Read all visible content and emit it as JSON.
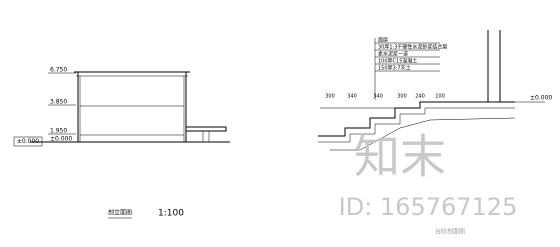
{
  "left": {
    "levels": [
      "6.750",
      "3.850",
      "1.950",
      "±0.000"
    ],
    "ground_label": "±0.000",
    "caption": "剖立面图",
    "scale": "1:100"
  },
  "right": {
    "dims": [
      "300",
      "340",
      "340",
      "300",
      "240",
      "100"
    ],
    "layers": [
      "面层",
      "30厚1:3干硬性水泥砂浆结合层",
      "素水泥浆一道",
      "100厚C15混凝土",
      "150厚3:7灰土"
    ],
    "level": "±0.000",
    "caption": "台阶剖面图"
  },
  "watermark": {
    "brand": "知末",
    "id": "ID: 165767125"
  }
}
